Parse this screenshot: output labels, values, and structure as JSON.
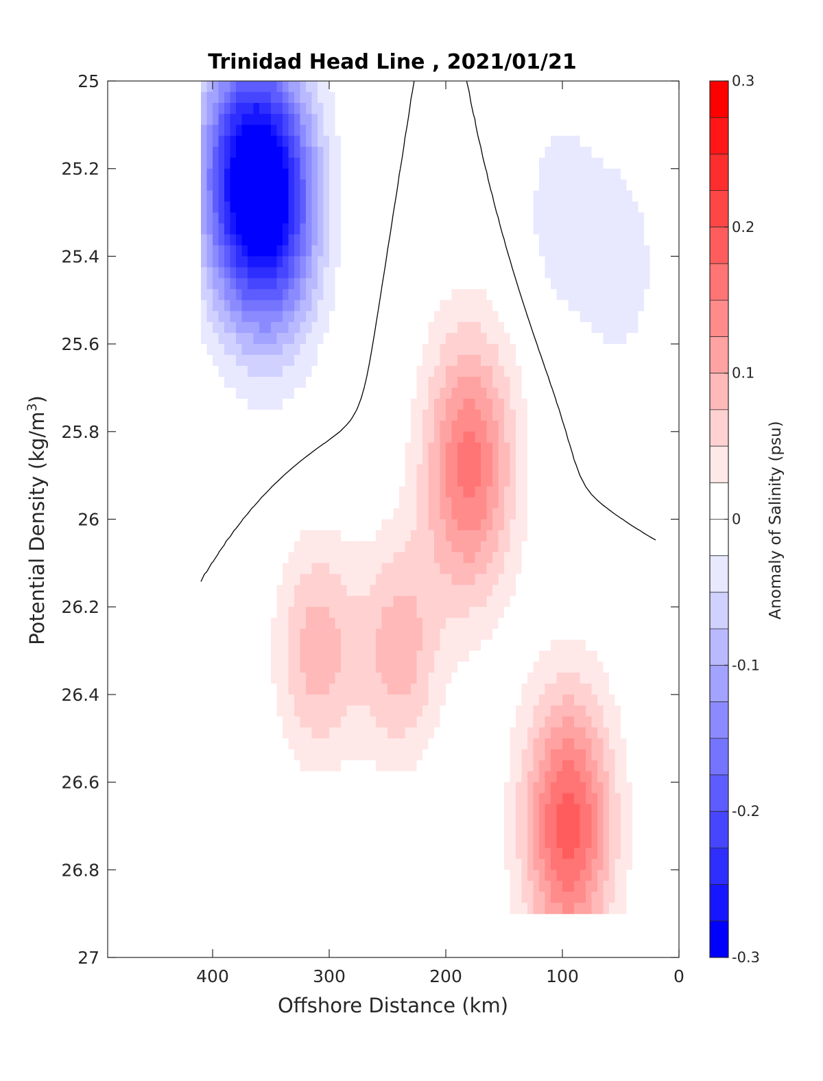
{
  "chart_data": {
    "type": "heatmap",
    "subtype": "filled-contour",
    "title": "Trinidad Head Line , 2021/01/21",
    "xlabel": "Offshore Distance (km)",
    "ylabel_prefix": "Potential Density (kg/m",
    "ylabel_sup": "3",
    "ylabel_suffix": ")",
    "colorbar_label": "Anomaly of Salinity (psu)",
    "x_reversed": true,
    "y_reversed": true,
    "xlim": [
      0,
      490
    ],
    "ylim": [
      25,
      27
    ],
    "xticks": [
      400,
      300,
      200,
      100,
      0
    ],
    "xtick_labels": [
      "400",
      "300",
      "200",
      "100",
      "0"
    ],
    "yticks": [
      25,
      25.2,
      25.4,
      25.6,
      25.8,
      26,
      26.2,
      26.4,
      26.6,
      26.8,
      27
    ],
    "ytick_labels": [
      "25",
      "25.2",
      "25.4",
      "25.6",
      "25.8",
      "26",
      "26.2",
      "26.4",
      "26.6",
      "26.8",
      "27"
    ],
    "clim": [
      -0.3,
      0.3
    ],
    "color_levels": 24,
    "level_step": 0.025,
    "cbar_ticks": [
      0.3,
      0.2,
      0.1,
      0,
      -0.1,
      -0.2,
      -0.3
    ],
    "cbar_tick_labels": [
      "0.3",
      "0.2",
      "0.1",
      "0",
      "-0.1",
      "-0.2",
      "-0.3"
    ],
    "colormap": {
      "negative": "#0000ff",
      "zero": "#ffffff",
      "positive": "#ff0000"
    },
    "zero_contour_color": "#000000",
    "data_extent": {
      "x": [
        20,
        410
      ],
      "y": [
        25,
        26.9
      ]
    },
    "features": [
      {
        "kind": "min",
        "x": 375,
        "y": 25.22,
        "value": -0.22
      },
      {
        "kind": "min",
        "x": 345,
        "y": 25.28,
        "value": -0.21
      },
      {
        "kind": "min",
        "x": 100,
        "y": 25.3,
        "value": -0.04
      },
      {
        "kind": "min",
        "x": 50,
        "y": 25.42,
        "value": -0.04
      },
      {
        "kind": "max",
        "x": 180,
        "y": 25.88,
        "value": 0.16
      },
      {
        "kind": "max",
        "x": 95,
        "y": 26.7,
        "value": 0.19
      },
      {
        "kind": "max",
        "x": 310,
        "y": 26.3,
        "value": 0.09
      },
      {
        "kind": "max",
        "x": 240,
        "y": 26.3,
        "value": 0.09
      }
    ]
  }
}
